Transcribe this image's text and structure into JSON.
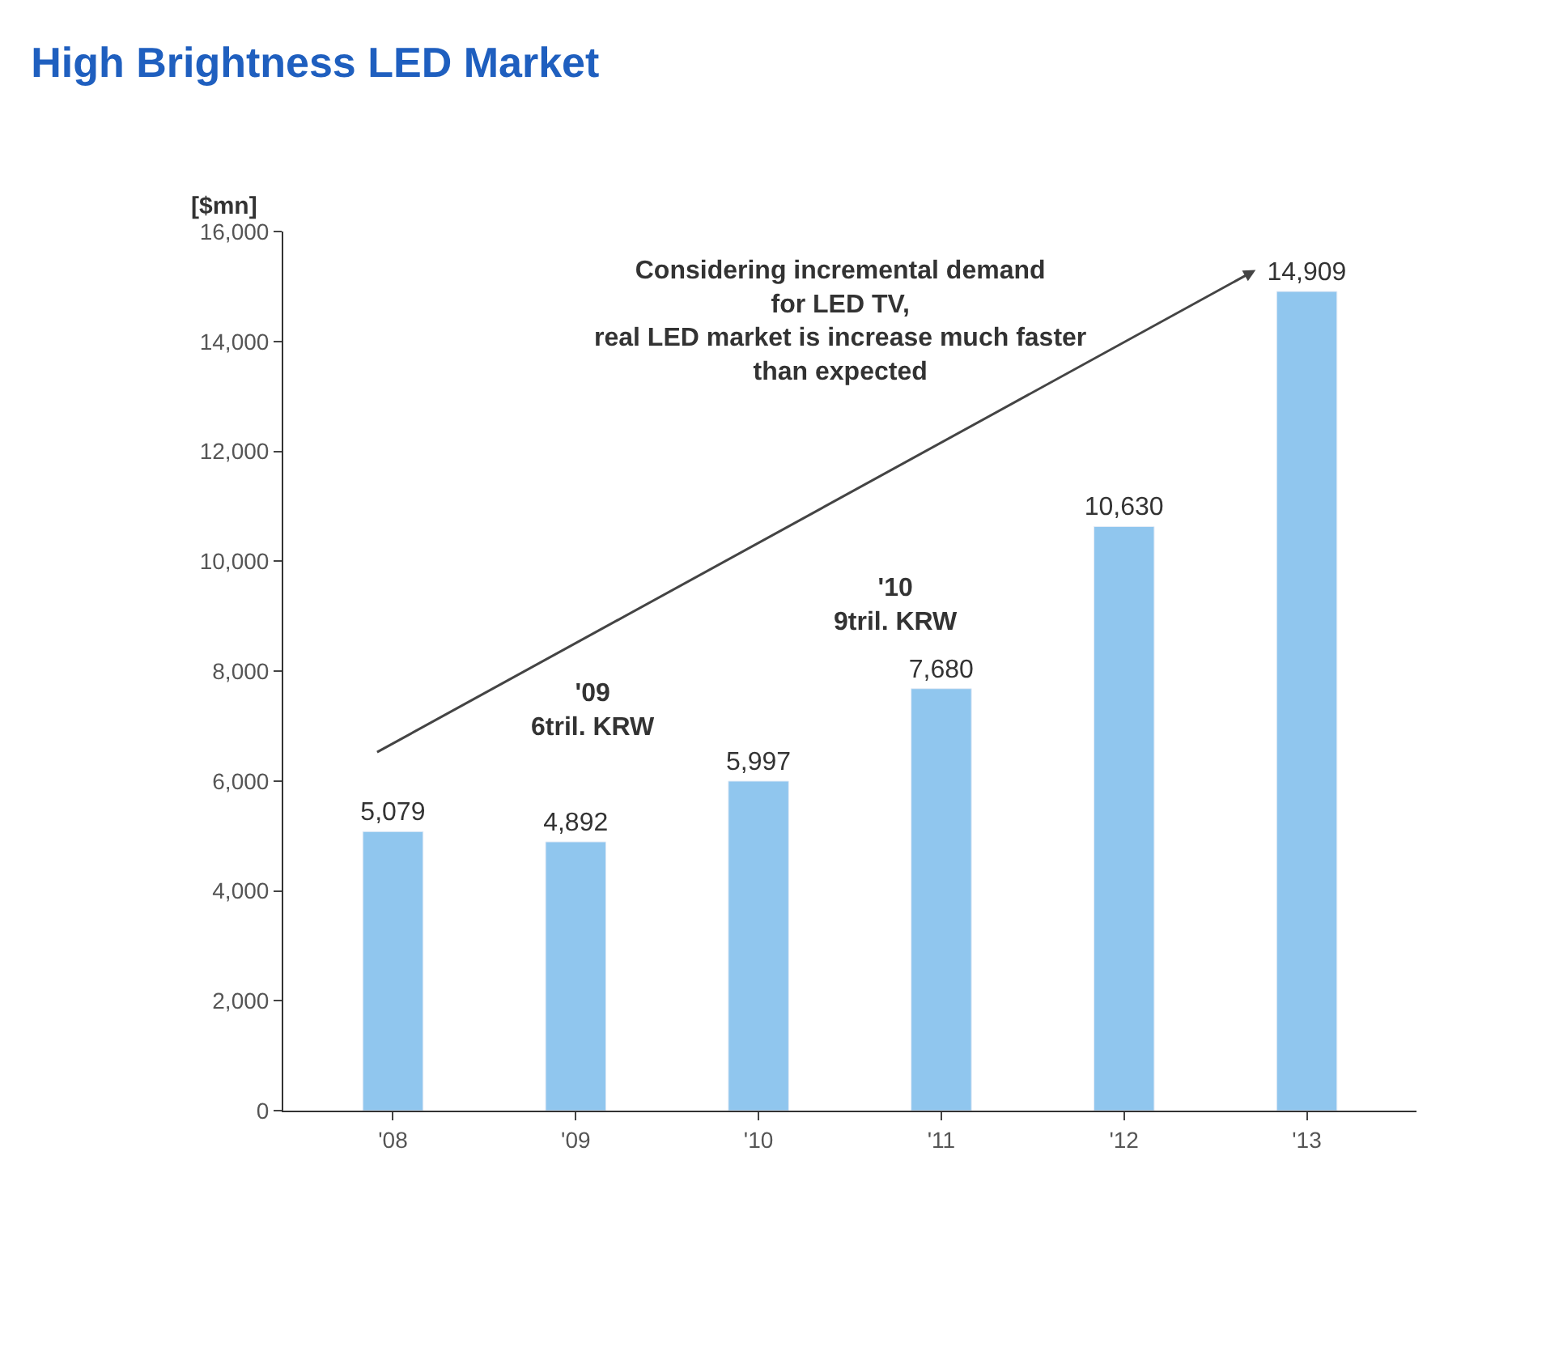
{
  "chart_data": {
    "type": "bar",
    "title": "High Brightness LED Market",
    "ylabel": "[$mn]",
    "categories": [
      "'08",
      "'09",
      "'10",
      "'11",
      "'12",
      "'13"
    ],
    "values": [
      5079,
      4892,
      5997,
      7680,
      10630,
      14909
    ],
    "value_labels": [
      "5,079",
      "4,892",
      "5,997",
      "7,680",
      "10,630",
      "14,909"
    ],
    "color": "#90c6ee",
    "ylim": [
      0,
      16000
    ],
    "yticks": [
      0,
      {
        "value": 2000,
        "label": "2,000"
      },
      {
        "value": 4000,
        "label": "4,000"
      },
      {
        "value": 6000,
        "label": "6,000"
      },
      {
        "value": 8000,
        "label": "8,000"
      },
      {
        "value": 10000,
        "label": "10,000"
      },
      {
        "value": 12000,
        "label": "12,000"
      },
      {
        "value": 14000,
        "label": "14,000"
      },
      {
        "value": 16000,
        "label": "16,000"
      }
    ],
    "legend": false,
    "annotations": [
      "Considering incremental demand\nfor LED TV,\nreal LED market is increase much faster\nthan expected",
      "'09\n6tril. KRW",
      "'10\n9tril. KRW"
    ]
  }
}
